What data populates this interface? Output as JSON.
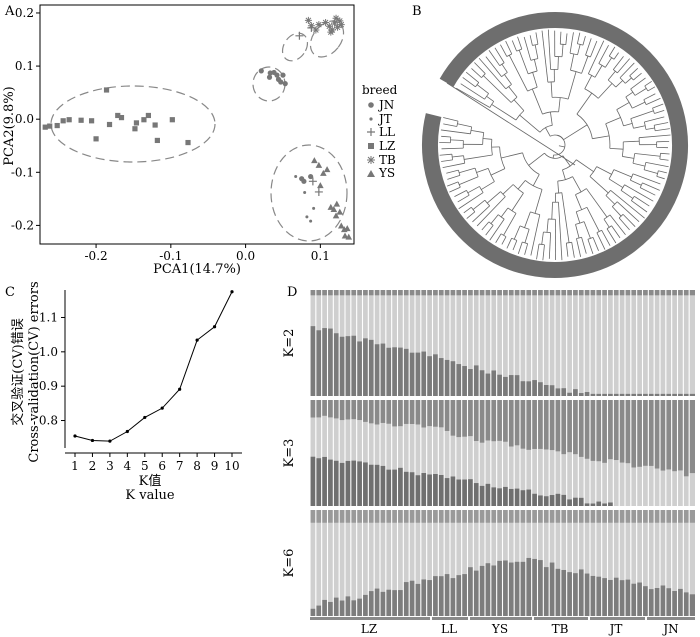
{
  "panels": {
    "a": "A",
    "b": "B",
    "c": "C",
    "d": "D"
  },
  "pca": {
    "xlabel": "PCA1(14.7%)",
    "ylabel": "PCA2(9.8%)",
    "xticks": [
      "-0.2",
      "-0.1",
      "0.0",
      "0.1"
    ],
    "yticks": [
      "-0.2",
      "-0.1",
      "0.0",
      "0.1",
      "0.2"
    ],
    "legend_title": "breed",
    "legend": [
      {
        "name": "JN",
        "shape": "circle"
      },
      {
        "name": "JT",
        "shape": "dot"
      },
      {
        "name": "LL",
        "shape": "plus"
      },
      {
        "name": "LZ",
        "shape": "square"
      },
      {
        "name": "TB",
        "shape": "asterisk"
      },
      {
        "name": "YS",
        "shape": "triangle"
      }
    ]
  },
  "cv": {
    "ylabel_cn": "交叉验证(CV)错误",
    "ylabel_en": "Cross-validation(CV) errors",
    "xlabel_cn": "K值",
    "xlabel_en": "K value",
    "xticks": [
      "1",
      "2",
      "3",
      "4",
      "5",
      "6",
      "7",
      "8",
      "9",
      "10"
    ],
    "yticks": [
      "0.8",
      "0.9",
      "1.0",
      "1.1"
    ]
  },
  "structure": {
    "rows": [
      "K=2",
      "K=3",
      "K=6"
    ],
    "groups": [
      "LZ",
      "LL",
      "YS",
      "TB",
      "JT",
      "JN"
    ]
  },
  "chart_data": [
    {
      "type": "scatter",
      "title": "",
      "xlabel": "PCA1(14.7%)",
      "ylabel": "PCA2(9.8%)",
      "xlim": [
        -0.275,
        0.145
      ],
      "ylim": [
        -0.235,
        0.215
      ],
      "legend_title": "breed",
      "legend_placement": "right",
      "grid": false,
      "series": [
        {
          "name": "LZ",
          "marker": "square",
          "points": [
            [
              -0.268,
              -0.015
            ],
            [
              -0.262,
              -0.013
            ],
            [
              -0.252,
              -0.012
            ],
            [
              -0.244,
              -0.003
            ],
            [
              -0.236,
              -0.001
            ],
            [
              -0.22,
              -0.002
            ],
            [
              -0.206,
              -0.003
            ],
            [
              -0.2,
              -0.037
            ],
            [
              -0.182,
              -0.01
            ],
            [
              -0.171,
              0.007
            ],
            [
              -0.166,
              0.003
            ],
            [
              -0.148,
              -0.018
            ],
            [
              -0.146,
              -0.007
            ],
            [
              -0.136,
              -0.001
            ],
            [
              -0.13,
              0.007
            ],
            [
              -0.121,
              -0.011
            ],
            [
              -0.118,
              -0.04
            ],
            [
              -0.098,
              -0.001
            ],
            [
              -0.077,
              -0.044
            ],
            [
              -0.186,
              0.055
            ]
          ]
        },
        {
          "name": "JN",
          "marker": "circle",
          "points": [
            [
              0.021,
              0.091
            ],
            [
              0.033,
              0.087
            ],
            [
              0.038,
              0.088
            ],
            [
              0.042,
              0.083
            ],
            [
              0.044,
              0.075
            ],
            [
              0.047,
              0.07
            ],
            [
              0.05,
              0.083
            ],
            [
              0.053,
              0.067
            ],
            [
              0.032,
              0.079
            ],
            [
              0.075,
              -0.112
            ],
            [
              0.078,
              -0.117
            ],
            [
              0.087,
              -0.108
            ]
          ]
        },
        {
          "name": "JT",
          "marker": "dot",
          "points": [
            [
              0.067,
              -0.108
            ],
            [
              0.079,
              -0.138
            ],
            [
              0.082,
              -0.184
            ],
            [
              0.087,
              -0.192
            ],
            [
              0.091,
              -0.168
            ]
          ]
        },
        {
          "name": "LL",
          "marker": "plus",
          "points": [
            [
              0.072,
              0.157
            ],
            [
              0.088,
              0.172
            ],
            [
              0.098,
              -0.137
            ],
            [
              0.09,
              -0.117
            ]
          ]
        },
        {
          "name": "TB",
          "marker": "asterisk",
          "points": [
            [
              0.084,
              0.186
            ],
            [
              0.088,
              0.176
            ],
            [
              0.094,
              0.168
            ],
            [
              0.098,
              0.178
            ],
            [
              0.107,
              0.182
            ],
            [
              0.112,
              0.175
            ],
            [
              0.114,
              0.164
            ],
            [
              0.116,
              0.168
            ],
            [
              0.119,
              0.181
            ],
            [
              0.121,
              0.19
            ],
            [
              0.123,
              0.173
            ],
            [
              0.126,
              0.185
            ],
            [
              0.128,
              0.178
            ]
          ]
        },
        {
          "name": "YS",
          "marker": "triangle",
          "points": [
            [
              0.092,
              -0.078
            ],
            [
              0.098,
              -0.087
            ],
            [
              0.1,
              -0.125
            ],
            [
              0.109,
              -0.095
            ],
            [
              0.104,
              -0.102
            ],
            [
              0.114,
              -0.166
            ],
            [
              0.118,
              -0.17
            ],
            [
              0.121,
              -0.182
            ],
            [
              0.128,
              -0.201
            ],
            [
              0.132,
              -0.208
            ],
            [
              0.136,
              -0.206
            ],
            [
              0.133,
              -0.22
            ],
            [
              0.138,
              -0.222
            ],
            [
              0.126,
              -0.175
            ],
            [
              0.122,
              -0.16
            ]
          ]
        }
      ]
    },
    {
      "type": "line",
      "title": "",
      "xlabel": "K值 K value",
      "ylabel": "交叉验证(CV)错误 Cross-validation(CV) errors",
      "x": [
        1,
        2,
        3,
        4,
        5,
        6,
        7,
        8,
        9,
        10
      ],
      "ylim": [
        0.72,
        1.18
      ],
      "series": [
        {
          "values": [
            0.755,
            0.742,
            0.74,
            0.768,
            0.809,
            0.836,
            0.891,
            1.034,
            1.073,
            1.175
          ]
        }
      ]
    }
  ]
}
